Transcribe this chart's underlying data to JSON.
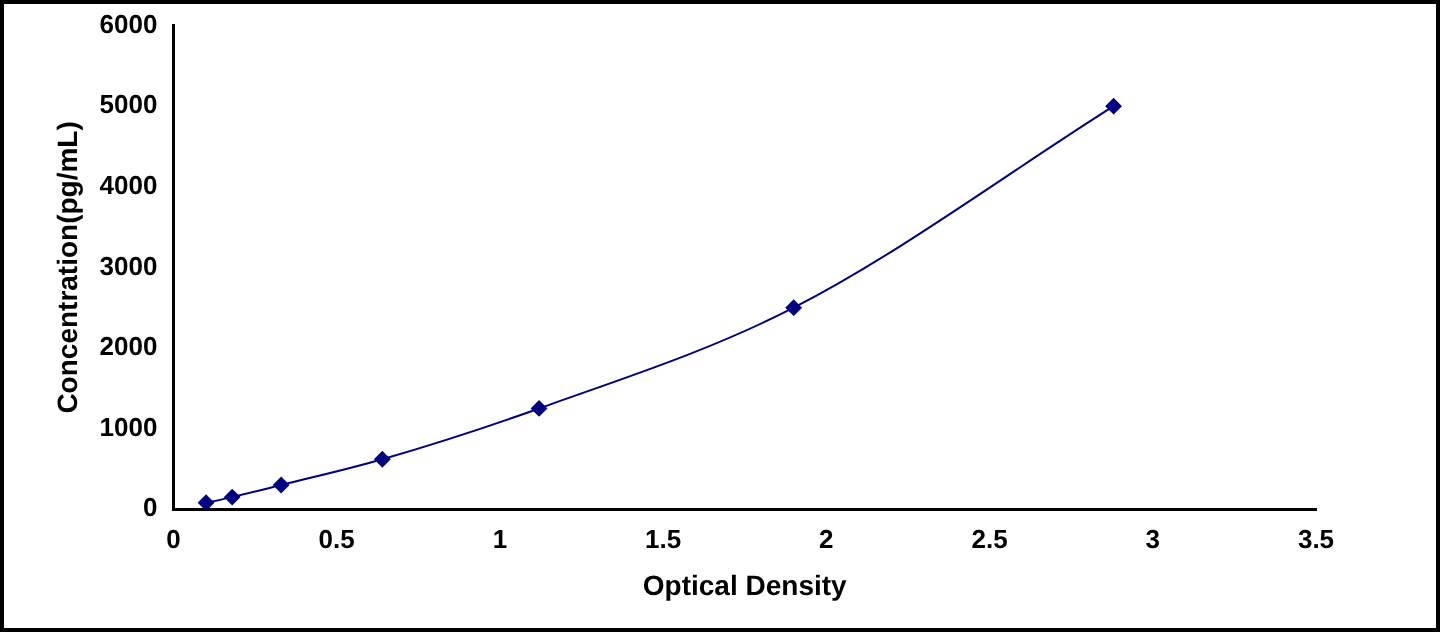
{
  "chart_data": {
    "type": "line",
    "xlabel": "Optical Density",
    "ylabel": "Concentration(pg/mL)",
    "x": [
      0.1,
      0.18,
      0.33,
      0.64,
      1.12,
      1.9,
      2.88
    ],
    "series": [
      {
        "color": "#000080",
        "values": [
          80,
          150,
          300,
          620,
          1250,
          2500,
          5000
        ]
      }
    ],
    "xlim": [
      0,
      3.5
    ],
    "xticks": [
      0,
      0.5,
      1,
      1.5,
      2,
      2.5,
      3,
      3.5
    ],
    "ylim": [
      0,
      6000
    ],
    "yticks": [
      0,
      1000,
      2000,
      3000,
      4000,
      5000,
      6000
    ],
    "grid": false,
    "legend": false,
    "marker": "diamond",
    "line_style": "solid"
  }
}
